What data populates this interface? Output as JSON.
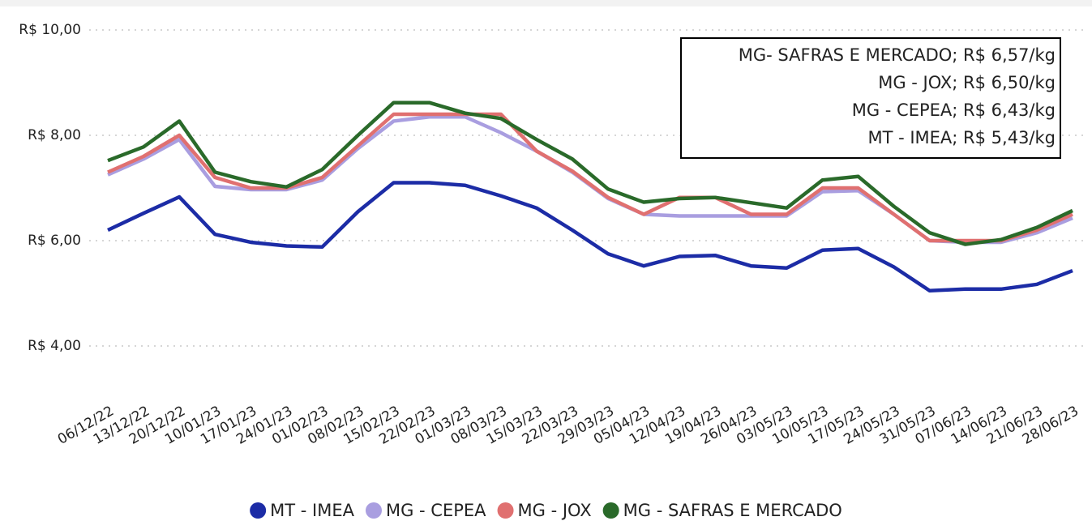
{
  "chart_data": {
    "type": "line",
    "categories": [
      "06/12/22",
      "13/12/22",
      "20/12/22",
      "10/01/23",
      "17/01/23",
      "24/01/23",
      "01/02/23",
      "08/02/23",
      "15/02/23",
      "22/02/23",
      "01/03/23",
      "08/03/23",
      "15/03/23",
      "22/03/23",
      "29/03/23",
      "05/04/23",
      "12/04/23",
      "19/04/23",
      "26/04/23",
      "03/05/23",
      "10/05/23",
      "17/05/23",
      "24/05/23",
      "31/05/23",
      "07/06/23",
      "14/06/23",
      "21/06/23",
      "28/06/23"
    ],
    "series": [
      {
        "name": "MT - IMEA",
        "color": "#1c2ca6",
        "values": [
          6.2,
          6.52,
          6.83,
          6.12,
          5.97,
          5.9,
          5.88,
          6.55,
          7.1,
          7.1,
          7.05,
          6.85,
          6.62,
          6.2,
          5.75,
          5.52,
          5.7,
          5.72,
          5.52,
          5.48,
          5.82,
          5.85,
          5.5,
          5.05,
          5.08,
          5.08,
          5.17,
          5.43
        ]
      },
      {
        "name": "MG - CEPEA",
        "color": "#a99ee0",
        "values": [
          7.25,
          7.55,
          7.92,
          7.03,
          6.97,
          6.97,
          7.15,
          7.75,
          8.27,
          8.35,
          8.35,
          8.05,
          7.7,
          7.3,
          6.8,
          6.5,
          6.47,
          6.47,
          6.47,
          6.47,
          6.93,
          6.95,
          6.5,
          6.0,
          5.97,
          5.97,
          6.15,
          6.43
        ]
      },
      {
        "name": "MG - JOX",
        "color": "#e07070",
        "values": [
          7.3,
          7.6,
          8.0,
          7.2,
          7.0,
          7.0,
          7.2,
          7.8,
          8.4,
          8.4,
          8.4,
          8.4,
          7.7,
          7.32,
          6.82,
          6.5,
          6.82,
          6.82,
          6.5,
          6.5,
          7.0,
          7.0,
          6.5,
          6.0,
          6.0,
          6.0,
          6.2,
          6.5
        ]
      },
      {
        "name": "MG - SAFRAS E MERCADO",
        "color": "#2a6a2a",
        "values": [
          7.52,
          7.78,
          8.27,
          7.3,
          7.12,
          7.02,
          7.35,
          8.0,
          8.62,
          8.62,
          8.42,
          8.32,
          7.92,
          7.55,
          6.98,
          6.73,
          6.8,
          6.82,
          6.72,
          6.62,
          7.15,
          7.22,
          6.65,
          6.15,
          5.93,
          6.02,
          6.25,
          6.57
        ]
      }
    ],
    "annotations": [
      "MG- SAFRAS E MERCADO; R$ 6,57/kg",
      "MG - JOX; R$ 6,50/kg",
      "MG - CEPEA; R$ 6,43/kg",
      "MT - IMEA; R$ 5,43/kg"
    ],
    "ylim": [
      3,
      10
    ],
    "yticks": [
      {
        "value": 4,
        "label": "R$ 4,00"
      },
      {
        "value": 6,
        "label": "R$ 6,00"
      },
      {
        "value": 8,
        "label": "R$ 8,00"
      },
      {
        "value": 10,
        "label": "R$ 10,00"
      }
    ],
    "grid": true
  }
}
